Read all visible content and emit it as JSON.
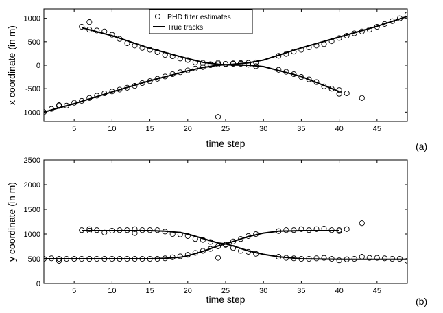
{
  "chart_data": [
    {
      "type": "scatter",
      "panel_label": "(a)",
      "xlabel": "time step",
      "ylabel": "x coordinate (in m)",
      "xlim": [
        1,
        49
      ],
      "ylim": [
        -1200,
        1200
      ],
      "xticks": [
        5,
        10,
        15,
        20,
        25,
        30,
        35,
        40,
        45
      ],
      "yticks": [
        -1000,
        -500,
        0,
        500,
        1000
      ],
      "legend": {
        "placement": "top-center",
        "entries": [
          "PHD filter estimates",
          "True tracks"
        ]
      },
      "series": [
        {
          "name": "PHD filter estimates",
          "marker": "open-circle",
          "points": [
            [
              1,
              -1000
            ],
            [
              2,
              -930
            ],
            [
              3,
              -870
            ],
            [
              3,
              -850
            ],
            [
              4,
              -860
            ],
            [
              5,
              -800
            ],
            [
              6,
              -760
            ],
            [
              7,
              -700
            ],
            [
              8,
              -650
            ],
            [
              9,
              -600
            ],
            [
              10,
              -560
            ],
            [
              11,
              -520
            ],
            [
              12,
              -480
            ],
            [
              13,
              -440
            ],
            [
              14,
              -380
            ],
            [
              15,
              -340
            ],
            [
              16,
              -290
            ],
            [
              17,
              -240
            ],
            [
              18,
              -190
            ],
            [
              19,
              -150
            ],
            [
              20,
              -110
            ],
            [
              21,
              -70
            ],
            [
              22,
              -40
            ],
            [
              23,
              0
            ],
            [
              24,
              20
            ],
            [
              25,
              30
            ],
            [
              26,
              40
            ],
            [
              27,
              45
            ],
            [
              28,
              50
            ],
            [
              29,
              60
            ],
            [
              32,
              200
            ],
            [
              33,
              240
            ],
            [
              34,
              290
            ],
            [
              35,
              330
            ],
            [
              36,
              380
            ],
            [
              37,
              420
            ],
            [
              38,
              450
            ],
            [
              39,
              510
            ],
            [
              40,
              580
            ],
            [
              41,
              630
            ],
            [
              42,
              680
            ],
            [
              43,
              720
            ],
            [
              44,
              760
            ],
            [
              45,
              820
            ],
            [
              46,
              880
            ],
            [
              47,
              940
            ],
            [
              48,
              1000
            ],
            [
              49,
              1080
            ],
            [
              6,
              820
            ],
            [
              7,
              920
            ],
            [
              7,
              760
            ],
            [
              8,
              740
            ],
            [
              9,
              720
            ],
            [
              10,
              650
            ],
            [
              11,
              560
            ],
            [
              12,
              470
            ],
            [
              13,
              420
            ],
            [
              14,
              370
            ],
            [
              15,
              330
            ],
            [
              16,
              280
            ],
            [
              17,
              220
            ],
            [
              18,
              190
            ],
            [
              19,
              140
            ],
            [
              20,
              110
            ],
            [
              21,
              60
            ],
            [
              22,
              50
            ],
            [
              23,
              20
            ],
            [
              24,
              50
            ],
            [
              25,
              20
            ],
            [
              26,
              30
            ],
            [
              27,
              30
            ],
            [
              28,
              10
            ],
            [
              29,
              -20
            ],
            [
              32,
              -100
            ],
            [
              33,
              -140
            ],
            [
              34,
              -190
            ],
            [
              35,
              -250
            ],
            [
              36,
              -300
            ],
            [
              37,
              -360
            ],
            [
              38,
              -450
            ],
            [
              39,
              -500
            ],
            [
              40,
              -530
            ],
            [
              40,
              -610
            ],
            [
              41,
              -600
            ],
            [
              43,
              -700
            ],
            [
              24,
              -1100
            ]
          ]
        },
        {
          "name": "True tracks",
          "line": "solid",
          "tracks": [
            {
              "x": [
                1,
                5,
                10,
                15,
                20,
                22,
                24,
                25,
                26,
                28,
                30,
                35,
                40,
                45,
                49
              ],
              "y": [
                -1000,
                -820,
                -570,
                -330,
                -120,
                -50,
                0,
                10,
                20,
                50,
                110,
                370,
                600,
                830,
                1040
              ]
            },
            {
              "x": [
                6,
                10,
                15,
                20,
                22,
                24,
                25,
                26,
                28,
                30,
                35,
                40
              ],
              "y": [
                800,
                630,
                360,
                140,
                60,
                20,
                10,
                5,
                0,
                -30,
                -240,
                -560
              ]
            }
          ]
        }
      ]
    },
    {
      "type": "scatter",
      "panel_label": "(b)",
      "xlabel": "time step",
      "ylabel": "y coordinate (in m)",
      "xlim": [
        1,
        49
      ],
      "ylim": [
        0,
        2500
      ],
      "xticks": [
        5,
        10,
        15,
        20,
        25,
        30,
        35,
        40,
        45
      ],
      "yticks": [
        0,
        500,
        1000,
        1500,
        2000,
        2500
      ],
      "series": [
        {
          "name": "PHD filter estimates",
          "marker": "open-circle",
          "points": [
            [
              1,
              500
            ],
            [
              2,
              510
            ],
            [
              3,
              460
            ],
            [
              3,
              500
            ],
            [
              4,
              500
            ],
            [
              5,
              500
            ],
            [
              6,
              500
            ],
            [
              7,
              500
            ],
            [
              8,
              500
            ],
            [
              9,
              500
            ],
            [
              10,
              500
            ],
            [
              11,
              500
            ],
            [
              12,
              500
            ],
            [
              13,
              500
            ],
            [
              14,
              500
            ],
            [
              15,
              500
            ],
            [
              16,
              500
            ],
            [
              17,
              510
            ],
            [
              18,
              530
            ],
            [
              19,
              550
            ],
            [
              20,
              580
            ],
            [
              21,
              620
            ],
            [
              22,
              660
            ],
            [
              23,
              700
            ],
            [
              24,
              750
            ],
            [
              24,
              520
            ],
            [
              25,
              790
            ],
            [
              26,
              850
            ],
            [
              27,
              900
            ],
            [
              28,
              960
            ],
            [
              29,
              1000
            ],
            [
              32,
              1060
            ],
            [
              33,
              1080
            ],
            [
              34,
              1080
            ],
            [
              35,
              1100
            ],
            [
              36,
              1080
            ],
            [
              37,
              1100
            ],
            [
              38,
              1110
            ],
            [
              39,
              1080
            ],
            [
              40,
              1080
            ],
            [
              40,
              1060
            ],
            [
              41,
              1100
            ],
            [
              43,
              1220
            ],
            [
              6,
              1080
            ],
            [
              7,
              1100
            ],
            [
              7,
              1070
            ],
            [
              8,
              1080
            ],
            [
              9,
              1030
            ],
            [
              10,
              1070
            ],
            [
              11,
              1080
            ],
            [
              12,
              1080
            ],
            [
              13,
              1100
            ],
            [
              13,
              1020
            ],
            [
              14,
              1080
            ],
            [
              15,
              1080
            ],
            [
              16,
              1080
            ],
            [
              17,
              1050
            ],
            [
              18,
              1000
            ],
            [
              19,
              990
            ],
            [
              20,
              960
            ],
            [
              21,
              900
            ],
            [
              22,
              880
            ],
            [
              23,
              840
            ],
            [
              25,
              780
            ],
            [
              26,
              720
            ],
            [
              27,
              660
            ],
            [
              28,
              640
            ],
            [
              29,
              600
            ],
            [
              32,
              540
            ],
            [
              33,
              520
            ],
            [
              34,
              510
            ],
            [
              35,
              500
            ],
            [
              36,
              500
            ],
            [
              37,
              510
            ],
            [
              38,
              520
            ],
            [
              39,
              500
            ],
            [
              40,
              470
            ],
            [
              41,
              490
            ],
            [
              42,
              500
            ],
            [
              43,
              540
            ],
            [
              44,
              520
            ],
            [
              45,
              520
            ],
            [
              46,
              510
            ],
            [
              47,
              500
            ],
            [
              48,
              500
            ],
            [
              49,
              460
            ]
          ]
        },
        {
          "name": "True tracks",
          "line": "solid",
          "tracks": [
            {
              "x": [
                1,
                10,
                15,
                17,
                19,
                20,
                22,
                24,
                25,
                26,
                28,
                30,
                32,
                35,
                40
              ],
              "y": [
                500,
                500,
                500,
                510,
                530,
                560,
                650,
                760,
                800,
                850,
                950,
                1020,
                1060,
                1070,
                1070
              ]
            },
            {
              "x": [
                6,
                10,
                15,
                17,
                19,
                20,
                22,
                24,
                25,
                26,
                28,
                30,
                32,
                35,
                40,
                45,
                49
              ],
              "y": [
                1070,
                1070,
                1070,
                1060,
                1030,
                1000,
                910,
                820,
                800,
                760,
                660,
                590,
                540,
                500,
                490,
                490,
                490
              ]
            }
          ]
        }
      ]
    }
  ]
}
